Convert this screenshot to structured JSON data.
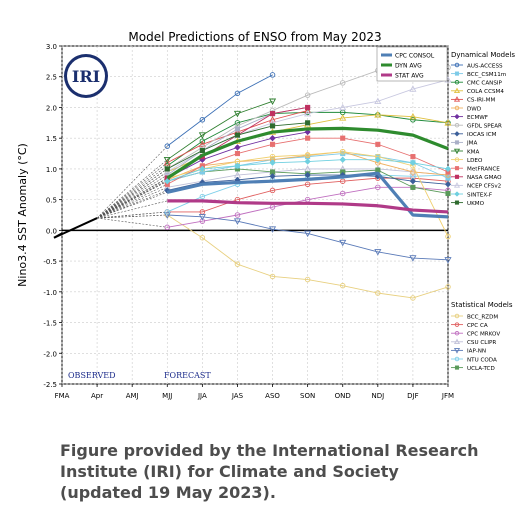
{
  "chart_data": {
    "type": "line",
    "title": "Model Predictions of ENSO from May 2023",
    "ylabel": "Nino3.4 SST Anomaly (°C)",
    "xlabel": "",
    "x": [
      "FMA",
      "Apr",
      "AMJ",
      "MJJ",
      "JJA",
      "JAS",
      "ASO",
      "SON",
      "OND",
      "NDJ",
      "DJF",
      "JFM"
    ],
    "ylim": [
      -2.5,
      3.0
    ],
    "yticks": [
      "3.0",
      "2.5",
      "2.0",
      "1.5",
      "1.0",
      "0.5",
      "0.0",
      "-0.5",
      "-1.0",
      "-1.5",
      "-2.0",
      "-2.5"
    ],
    "grid": true,
    "observed": {
      "x": [
        "FMA",
        "Apr"
      ],
      "values": [
        -0.05,
        0.2
      ]
    },
    "region_labels": {
      "observed": "OBSERVED",
      "forecast": "FORECAST"
    },
    "legend_sections": {
      "dynamical": "Dynamical Models",
      "statistical": "Statistical Models"
    },
    "averages": [
      {
        "name": "CPC CONSOL",
        "color": "#4f7fb5",
        "values": [
          0.62,
          0.75,
          0.78,
          0.8,
          0.83,
          0.87,
          0.93,
          0.25,
          0.22
        ]
      },
      {
        "name": "DYN AVG",
        "color": "#2e8b2e",
        "values": [
          0.85,
          1.22,
          1.45,
          1.6,
          1.65,
          1.66,
          1.63,
          1.55,
          1.33
        ]
      },
      {
        "name": "STAT AVG",
        "color": "#b03a88",
        "values": [
          0.48,
          0.48,
          0.45,
          0.44,
          0.44,
          0.43,
          0.4,
          0.33,
          0.3
        ]
      }
    ],
    "dynamical_models": [
      {
        "name": "AUS-ACCESS",
        "color": "#3b6fb5",
        "marker": "circle",
        "values": [
          1.37,
          1.8,
          2.23,
          2.53
        ]
      },
      {
        "name": "BCC_CSM11m",
        "color": "#7ecbe8",
        "marker": "square",
        "values": [
          0.8,
          0.95,
          1.05,
          1.15,
          1.2,
          1.25,
          1.2,
          1.1,
          0.85
        ]
      },
      {
        "name": "CMC CANSIP",
        "color": "#1f8a3a",
        "marker": "circle",
        "values": [
          1.05,
          1.45,
          1.75,
          1.9,
          1.92,
          1.92,
          1.88,
          1.8,
          1.75
        ]
      },
      {
        "name": "COLA CCSM4",
        "color": "#e0c040",
        "marker": "tri-up",
        "values": [
          0.95,
          1.2,
          1.45,
          1.6,
          1.72,
          1.83,
          1.88,
          1.85,
          1.75
        ]
      },
      {
        "name": "CS-IRI-MM",
        "color": "#e05050",
        "marker": "tri-up",
        "values": [
          1.1,
          1.4,
          1.6,
          1.8,
          1.95
        ]
      },
      {
        "name": "DWD",
        "color": "#f0b060",
        "marker": "circle",
        "values": [
          0.82,
          1.05,
          1.12,
          1.15,
          1.22,
          1.28,
          1.1,
          0.95,
          0.9
        ]
      },
      {
        "name": "ECMWF",
        "color": "#7030a0",
        "marker": "diamond",
        "values": [
          0.85,
          1.15,
          1.35,
          1.5,
          1.6
        ]
      },
      {
        "name": "GFDL SPEAR",
        "color": "#bbbbbb",
        "marker": "circle",
        "values": [
          1.0,
          1.35,
          1.7,
          1.95,
          2.2,
          2.4,
          2.6,
          2.72,
          2.65
        ]
      },
      {
        "name": "IOCAS ICM",
        "color": "#3b5f9a",
        "marker": "diamond",
        "values": [
          0.65,
          0.78,
          0.82,
          0.88,
          0.9,
          0.9,
          0.88,
          0.8,
          0.75
        ]
      },
      {
        "name": "JMA",
        "color": "#aab0c8",
        "marker": "square",
        "values": [
          0.9,
          1.3,
          1.65,
          1.9,
          2.0
        ]
      },
      {
        "name": "KMA",
        "color": "#2f7f2f",
        "marker": "tri-down",
        "values": [
          1.15,
          1.55,
          1.9,
          2.1
        ]
      },
      {
        "name": "LDEO",
        "color": "#f0d070",
        "marker": "circle",
        "values": [
          0.85,
          1.0,
          1.12,
          1.2,
          1.23,
          1.28,
          1.2,
          1.05,
          -0.1
        ]
      },
      {
        "name": "MetFRANCE",
        "color": "#e77070",
        "marker": "square",
        "values": [
          0.75,
          1.05,
          1.25,
          1.4,
          1.5,
          1.5,
          1.4,
          1.2,
          0.95
        ]
      },
      {
        "name": "NASA GMAO",
        "color": "#c03060",
        "marker": "square",
        "values": [
          0.85,
          1.2,
          1.55,
          1.9,
          2.0
        ]
      },
      {
        "name": "NCEP CFSv2",
        "color": "#c8c8e0",
        "marker": "tri-up",
        "values": [
          0.95,
          1.3,
          1.55,
          1.75,
          1.9,
          2.0,
          2.1,
          2.3,
          2.45
        ]
      },
      {
        "name": "SINTEX-F",
        "color": "#70d0e0",
        "marker": "diamond",
        "values": [
          0.8,
          1.0,
          1.05,
          1.1,
          1.12,
          1.15,
          1.15,
          1.1,
          1.0
        ]
      },
      {
        "name": "UKMO",
        "color": "#2e6b2e",
        "marker": "square",
        "values": [
          1.0,
          1.3,
          1.55,
          1.7,
          1.75
        ]
      }
    ],
    "statistical_models": [
      {
        "name": "BCC_RZDM",
        "color": "#e8d080",
        "marker": "circle",
        "values": [
          0.25,
          -0.12,
          -0.55,
          -0.75,
          -0.8,
          -0.9,
          -1.02,
          -1.1,
          -0.92
        ]
      },
      {
        "name": "CPC CA",
        "color": "#e06060",
        "marker": "circle",
        "values": [
          0.3,
          0.3,
          0.5,
          0.65,
          0.75,
          0.8,
          0.85,
          0.85,
          0.8
        ]
      },
      {
        "name": "CPC MRKOV",
        "color": "#c070c0",
        "marker": "circle",
        "values": [
          0.05,
          0.15,
          0.25,
          0.38,
          0.5,
          0.6,
          0.7,
          0.7,
          0.65
        ]
      },
      {
        "name": "CSU CLIPR",
        "color": "#c0c0d8",
        "marker": "tri-up",
        "values": [
          0.7,
          0.8,
          0.9,
          0.95,
          1.0,
          1.0,
          1.0,
          0.95,
          0.9
        ]
      },
      {
        "name": "IAP-NN",
        "color": "#5a7ab8",
        "marker": "tri-down",
        "values": [
          0.25,
          0.22,
          0.15,
          0.02,
          -0.05,
          -0.2,
          -0.35,
          -0.45,
          -0.48
        ]
      },
      {
        "name": "NTU CODA",
        "color": "#7fd0ea",
        "marker": "circle",
        "values": [
          0.3,
          0.55,
          0.75,
          0.82,
          0.85,
          0.88,
          0.9,
          0.88,
          0.9
        ]
      },
      {
        "name": "UCLA-TCD",
        "color": "#5a9a5a",
        "marker": "square",
        "values": [
          0.8,
          0.95,
          1.0,
          0.95,
          0.92,
          0.95,
          0.98,
          0.7,
          0.6
        ]
      }
    ]
  },
  "logo": {
    "text": "IRI"
  },
  "caption": {
    "line1": "Figure provided by the International Research",
    "line2": "Institute (IRI) for Climate and Society",
    "line3": "(updated 19 May 2023)."
  }
}
